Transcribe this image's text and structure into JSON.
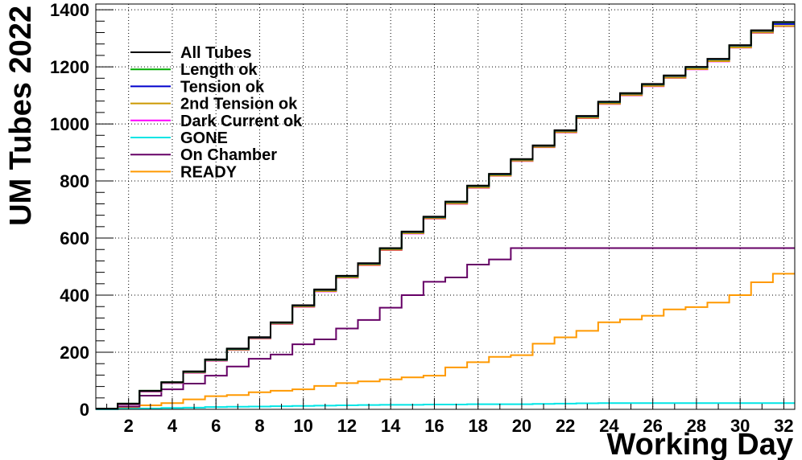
{
  "chart_data": {
    "type": "line",
    "step": true,
    "title": "",
    "xlabel": "Working Day",
    "ylabel": "UM Tubes 2022",
    "xlim": [
      0.5,
      32.5
    ],
    "ylim": [
      0,
      1420
    ],
    "x_ticks": [
      2,
      4,
      6,
      8,
      10,
      12,
      14,
      16,
      18,
      20,
      22,
      24,
      26,
      28,
      30,
      32
    ],
    "y_ticks": [
      0,
      200,
      400,
      600,
      800,
      1000,
      1200,
      1400
    ],
    "grid": true,
    "legend_position": "top-left",
    "bins": [
      1,
      2,
      3,
      4,
      5,
      6,
      7,
      8,
      9,
      10,
      11,
      12,
      13,
      14,
      15,
      16,
      17,
      18,
      19,
      20,
      21,
      22,
      23,
      24,
      25,
      26,
      27,
      28,
      29,
      30,
      31,
      32
    ],
    "series": [
      {
        "name": "All Tubes",
        "color": "#000000",
        "values": [
          2,
          20,
          65,
          95,
          133,
          175,
          213,
          253,
          305,
          365,
          420,
          468,
          512,
          565,
          623,
          675,
          728,
          784,
          825,
          877,
          925,
          978,
          1028,
          1078,
          1108,
          1140,
          1170,
          1200,
          1228,
          1276,
          1328,
          1357
        ]
      },
      {
        "name": "Length ok",
        "color": "#00aa00",
        "values": [
          2,
          20,
          65,
          95,
          132,
          174,
          212,
          252,
          304,
          364,
          419,
          467,
          511,
          564,
          622,
          674,
          727,
          783,
          824,
          876,
          924,
          977,
          1027,
          1077,
          1107,
          1139,
          1169,
          1199,
          1227,
          1275,
          1327,
          1356
        ]
      },
      {
        "name": "Tension ok",
        "color": "#0000cc",
        "values": [
          2,
          19,
          64,
          94,
          131,
          173,
          211,
          251,
          303,
          363,
          418,
          466,
          510,
          563,
          621,
          673,
          726,
          782,
          823,
          875,
          923,
          976,
          1026,
          1076,
          1106,
          1138,
          1168,
          1198,
          1226,
          1274,
          1326,
          1350
        ]
      },
      {
        "name": "2nd Tension ok",
        "color": "#cc9900",
        "values": [
          2,
          18,
          63,
          93,
          129,
          171,
          209,
          249,
          300,
          360,
          414,
          462,
          506,
          559,
          617,
          669,
          721,
          777,
          819,
          871,
          919,
          971,
          1021,
          1071,
          1101,
          1133,
          1162,
          1192,
          1220,
          1268,
          1320,
          1343
        ]
      },
      {
        "name": "Dark Current ok",
        "color": "#ff00ff",
        "values": [
          2,
          17,
          62,
          92,
          128,
          170,
          208,
          248,
          299,
          359,
          413,
          461,
          505,
          558,
          616,
          668,
          720,
          776,
          818,
          870,
          918,
          970,
          1020,
          1070,
          1100,
          1132,
          1161,
          1191,
          1219,
          1267,
          1319,
          1342
        ]
      },
      {
        "name": "GONE",
        "color": "#00e5e5",
        "values": [
          0,
          2,
          3,
          5,
          6,
          8,
          9,
          10,
          11,
          12,
          13,
          14,
          15,
          16,
          16,
          17,
          17,
          18,
          18,
          18,
          19,
          20,
          21,
          22,
          22,
          22,
          22,
          22,
          22,
          22,
          22,
          22
        ]
      },
      {
        "name": "On Chamber",
        "color": "#660066",
        "values": [
          0,
          10,
          48,
          70,
          90,
          118,
          150,
          177,
          192,
          228,
          245,
          283,
          313,
          356,
          400,
          447,
          462,
          507,
          525,
          565,
          565,
          565,
          565,
          565,
          565,
          565,
          565,
          565,
          565,
          565,
          565,
          565
        ]
      },
      {
        "name": "READY",
        "color": "#ff9900",
        "values": [
          0,
          5,
          14,
          22,
          35,
          46,
          50,
          60,
          65,
          70,
          82,
          92,
          98,
          105,
          112,
          118,
          147,
          165,
          184,
          190,
          230,
          252,
          275,
          305,
          315,
          328,
          350,
          358,
          374,
          400,
          445,
          475
        ]
      }
    ]
  }
}
